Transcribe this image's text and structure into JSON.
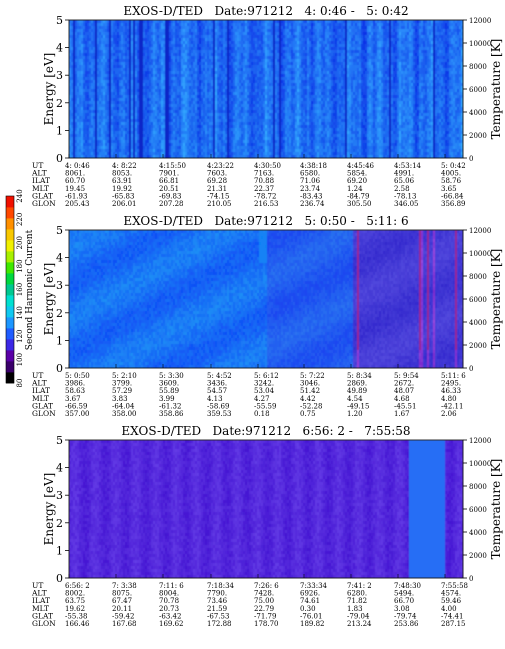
{
  "colorbar": {
    "label": "Second Harmonic Current",
    "ticks": [
      "80",
      "100",
      "120",
      "140",
      "160",
      "180",
      "200",
      "220",
      "240"
    ],
    "colors": [
      "#000000",
      "#3a006a",
      "#5a00a6",
      "#3c28e6",
      "#1f5cff",
      "#1c96ff",
      "#10c8f0",
      "#00e0d0",
      "#00c890",
      "#00d840",
      "#3fe800",
      "#a8f000",
      "#f0f000",
      "#f8c800",
      "#ff9000",
      "#ff4800",
      "#f01000"
    ]
  },
  "row_labels": [
    "UT",
    "ALT",
    "ILAT",
    "MLT",
    "GLAT",
    "GLON"
  ],
  "panels": [
    {
      "title": "EXOS-D/TED   Date:971212   4: 0:46 -   5: 0:42",
      "ylabel_left": "Energy [eV]",
      "ylabel_right": "Temperature [K]",
      "yticks_left": [
        "0",
        "1",
        "2",
        "3",
        "4",
        "5"
      ],
      "yticks_right": [
        "0",
        "2000",
        "4000",
        "6000",
        "8000",
        "10000",
        "12000"
      ],
      "table": [
        [
          "4: 0:46",
          "4: 8:22",
          "4:15:50",
          "4:23:22",
          "4:30:50",
          "4:38:18",
          "4:45:46",
          "4:53:14",
          "5: 0:42"
        ],
        [
          "8061.",
          "8053.",
          "7901.",
          "7603.",
          "7163.",
          "6580.",
          "5854.",
          "4991.",
          "4005."
        ],
        [
          "60.70",
          "63.91",
          "66.81",
          "69.28",
          "70.88",
          "71.06",
          "69.20",
          "65.06",
          "58.76"
        ],
        [
          "19.45",
          "19.92",
          "20.51",
          "21.31",
          "22.37",
          "23.74",
          "1.24",
          "2.58",
          "3.65"
        ],
        [
          "-61.93",
          "-65.83",
          "-69.83",
          "-74.15",
          "-78.72",
          "-83.43",
          "-84.79",
          "-78.13",
          "-66.84"
        ],
        [
          "205.43",
          "206.01",
          "207.28",
          "210.05",
          "216.53",
          "236.74",
          "305.50",
          "346.05",
          "356.89"
        ]
      ]
    },
    {
      "title": "EXOS-D/TED   Date:971212   5: 0:50 -   5:11: 6",
      "ylabel_left": "Energy [eV]",
      "ylabel_right": "Temperature [K]",
      "yticks_left": [
        "0",
        "1",
        "2",
        "3",
        "4",
        "5"
      ],
      "yticks_right": [
        "0",
        "2000",
        "4000",
        "6000",
        "8000",
        "10000",
        "12000"
      ],
      "table": [
        [
          "5: 0:50",
          "5: 2:10",
          "5: 3:30",
          "5: 4:52",
          "5: 6:12",
          "5: 7:22",
          "5: 8:34",
          "5: 9:54",
          "5:11: 6"
        ],
        [
          "3986.",
          "3799.",
          "3609.",
          "3436.",
          "3242.",
          "3046.",
          "2869.",
          "2672.",
          "2495."
        ],
        [
          "58.63",
          "57.29",
          "55.89",
          "54.57",
          "53.04",
          "51.42",
          "49.89",
          "48.07",
          "46.33"
        ],
        [
          "3.67",
          "3.83",
          "3.99",
          "4.13",
          "4.27",
          "4.42",
          "4.54",
          "4.68",
          "4.80"
        ],
        [
          "-66.59",
          "-64.04",
          "-61.32",
          "-58.69",
          "-55.59",
          "-52.28",
          "-49.15",
          "-45.51",
          "-42.11"
        ],
        [
          "357.00",
          "358.00",
          "358.86",
          "359.53",
          "0.18",
          "0.75",
          "1.20",
          "1.67",
          "2.06"
        ]
      ]
    },
    {
      "title": "EXOS-D/TED   Date:971212   6:56: 2 -   7:55:58",
      "ylabel_left": "Energy [eV]",
      "ylabel_right": "Temperature [K]",
      "yticks_left": [
        "0",
        "1",
        "2",
        "3",
        "4",
        "5"
      ],
      "yticks_right": [
        "0",
        "2000",
        "4000",
        "6000",
        "8000",
        "10000",
        "12000"
      ],
      "table": [
        [
          "6:56: 2",
          "7: 3:38",
          "7:11: 6",
          "7:18:34",
          "7:26: 6",
          "7:33:34",
          "7:41: 2",
          "7:48:30",
          "7:55:58"
        ],
        [
          "8002.",
          "8075.",
          "8004.",
          "7790.",
          "7428.",
          "6926.",
          "6280.",
          "5494.",
          "4574."
        ],
        [
          "63.75",
          "67.47",
          "70.78",
          "73.46",
          "75.00",
          "74.61",
          "71.82",
          "66.70",
          "59.46"
        ],
        [
          "19.62",
          "20.11",
          "20.73",
          "21.59",
          "22.79",
          "0.30",
          "1.83",
          "3.08",
          "4.00"
        ],
        [
          "-55.38",
          "-59.42",
          "-63.42",
          "-67.53",
          "-71.79",
          "-76.01",
          "-79.04",
          "-79.74",
          "-74.41"
        ],
        [
          "166.46",
          "167.68",
          "169.62",
          "172.88",
          "178.70",
          "189.82",
          "213.24",
          "253.86",
          "287.15"
        ]
      ]
    }
  ],
  "chart_data": [
    {
      "type": "heatmap",
      "title": "EXOS-D/TED   Date:971212   4: 0:46 -   5: 0:42",
      "ylabel": "Energy [eV]",
      "ylabel_right": "Temperature [K]",
      "ylim": [
        0,
        5
      ],
      "ylim_right": [
        0,
        12000
      ],
      "x": [
        "4: 0:46",
        "4: 8:22",
        "4:15:50",
        "4:23:22",
        "4:30:50",
        "4:38:18",
        "4:45:46",
        "4:53:14",
        "5: 0:42"
      ],
      "colorbar_range": [
        80,
        240
      ],
      "description_level": "mostly 140-160 (blue) across all energies"
    },
    {
      "type": "heatmap",
      "title": "EXOS-D/TED   Date:971212   5: 0:50 -   5:11: 6",
      "ylabel": "Energy [eV]",
      "ylabel_right": "Temperature [K]",
      "ylim": [
        0,
        5
      ],
      "ylim_right": [
        0,
        12000
      ],
      "x": [
        "5: 0:50",
        "5: 2:10",
        "5: 3:30",
        "5: 4:52",
        "5: 6:12",
        "5: 7:22",
        "5: 8:34",
        "5: 9:54",
        "5:11: 6"
      ],
      "colorbar_range": [
        80,
        240
      ],
      "description_level": "140-160 (blue) early, 120-140 with purple/red streaks after 5:8"
    },
    {
      "type": "heatmap",
      "title": "EXOS-D/TED   Date:971212   6:56: 2 -   7:55:58",
      "ylabel": "Energy [eV]",
      "ylabel_right": "Temperature [K]",
      "ylim": [
        0,
        5
      ],
      "ylim_right": [
        0,
        12000
      ],
      "x": [
        "6:56: 2",
        "7: 3:38",
        "7:11: 6",
        "7:18:34",
        "7:26: 6",
        "7:33:34",
        "7:41: 2",
        "7:48:30",
        "7:55:58"
      ],
      "colorbar_range": [
        80,
        240
      ],
      "description_level": "120-140 (purple-blue) throughout"
    }
  ]
}
